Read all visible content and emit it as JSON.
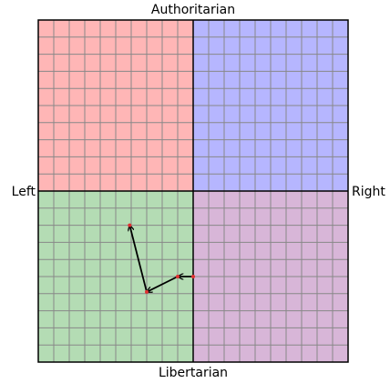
{
  "chart_data": {
    "type": "compass",
    "labels": {
      "top": "Authoritarian",
      "bottom": "Libertarian",
      "left": "Left",
      "right": "Right"
    },
    "xlim": [
      -10,
      10
    ],
    "ylim": [
      -10,
      10
    ],
    "xticks": [
      -10,
      -9,
      -8,
      -7,
      -6,
      -5,
      -4,
      -3,
      -2,
      -1,
      0,
      1,
      2,
      3,
      4,
      5,
      6,
      7,
      8,
      9,
      10
    ],
    "yticks": [
      -10,
      -9,
      -8,
      -7,
      -6,
      -5,
      -4,
      -3,
      -2,
      -1,
      0,
      1,
      2,
      3,
      4,
      5,
      6,
      7,
      8,
      9,
      10
    ],
    "grid": true,
    "quadrant_colors": {
      "top_left": "#ffb6b6",
      "top_right": "#b6b6ff",
      "bottom_left": "#b4dcb4",
      "bottom_right": "#d8b6d8"
    },
    "x": [
      0,
      -1,
      -3,
      -4.1
    ],
    "series": [
      {
        "color": "#000000",
        "marker_color": "#e03030",
        "values": [
          -5,
          -5,
          -5.9,
          -2
        ]
      }
    ]
  }
}
